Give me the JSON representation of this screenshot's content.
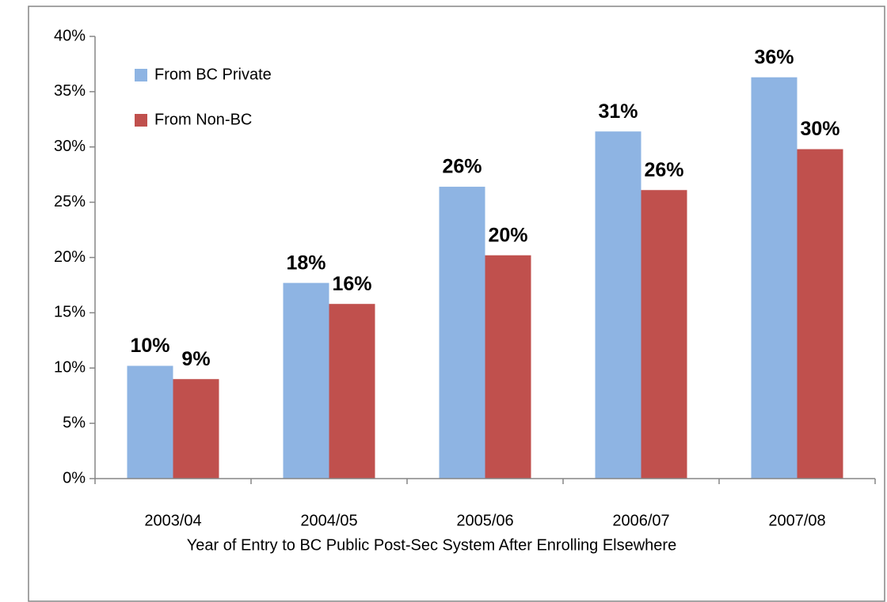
{
  "chart_data": {
    "type": "bar",
    "x_label": "Year of Entry to BC Public Post-Sec System After Enrolling Elsewhere",
    "categories": [
      "2003/04",
      "2004/05",
      "2005/06",
      "2006/07",
      "2007/08"
    ],
    "series": [
      {
        "name": "From BC Private",
        "color": "#8eb4e3",
        "values": [
          10.2,
          17.7,
          26.4,
          31.4,
          36.3
        ],
        "value_labels": [
          "10%",
          "18%",
          "26%",
          "31%",
          "36%"
        ]
      },
      {
        "name": "From Non-BC",
        "color": "#c0504d",
        "values": [
          9.0,
          15.8,
          20.2,
          26.1,
          29.8
        ],
        "value_labels": [
          "9%",
          "16%",
          "20%",
          "26%",
          "30%"
        ]
      }
    ],
    "ylim": [
      0,
      40
    ],
    "yticks": [
      {
        "value": 0,
        "label": "0%"
      },
      {
        "value": 5,
        "label": "5%"
      },
      {
        "value": 10,
        "label": "10%"
      },
      {
        "value": 15,
        "label": "15%"
      },
      {
        "value": 20,
        "label": "20%"
      },
      {
        "value": 25,
        "label": "25%"
      },
      {
        "value": 30,
        "label": "30%"
      },
      {
        "value": 35,
        "label": "35%"
      },
      {
        "value": 40,
        "label": "40%"
      }
    ],
    "legend": "top-left"
  }
}
